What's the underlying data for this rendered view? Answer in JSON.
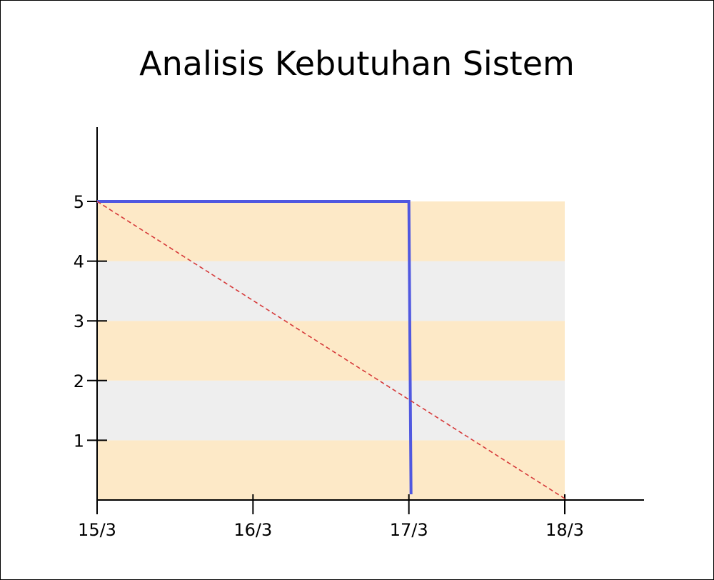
{
  "chart_data": {
    "type": "line",
    "title": "Analisis Kebutuhan Sistem",
    "xlabel": "",
    "ylabel": "",
    "x_ticks": [
      "15/3",
      "16/3",
      "17/3",
      "18/3"
    ],
    "y_ticks": [
      1,
      2,
      3,
      4,
      5
    ],
    "xlim": [
      "15/3",
      "18/3"
    ],
    "ylim": [
      0,
      5
    ],
    "background_bands": {
      "colors": [
        "#fde9c7",
        "#eeeeee"
      ],
      "band_height": 1
    },
    "series": [
      {
        "role": "actual",
        "style": "solid",
        "color": "#5058e0",
        "points": [
          {
            "x": "15/3",
            "y": 5
          },
          {
            "x": "17/3",
            "y": 5
          },
          {
            "x": "17/3",
            "y": 0
          }
        ]
      },
      {
        "role": "ideal",
        "style": "dashed",
        "color": "#d63a3a",
        "points": [
          {
            "x": "15/3",
            "y": 5
          },
          {
            "x": "18/3",
            "y": 0
          }
        ]
      }
    ]
  }
}
